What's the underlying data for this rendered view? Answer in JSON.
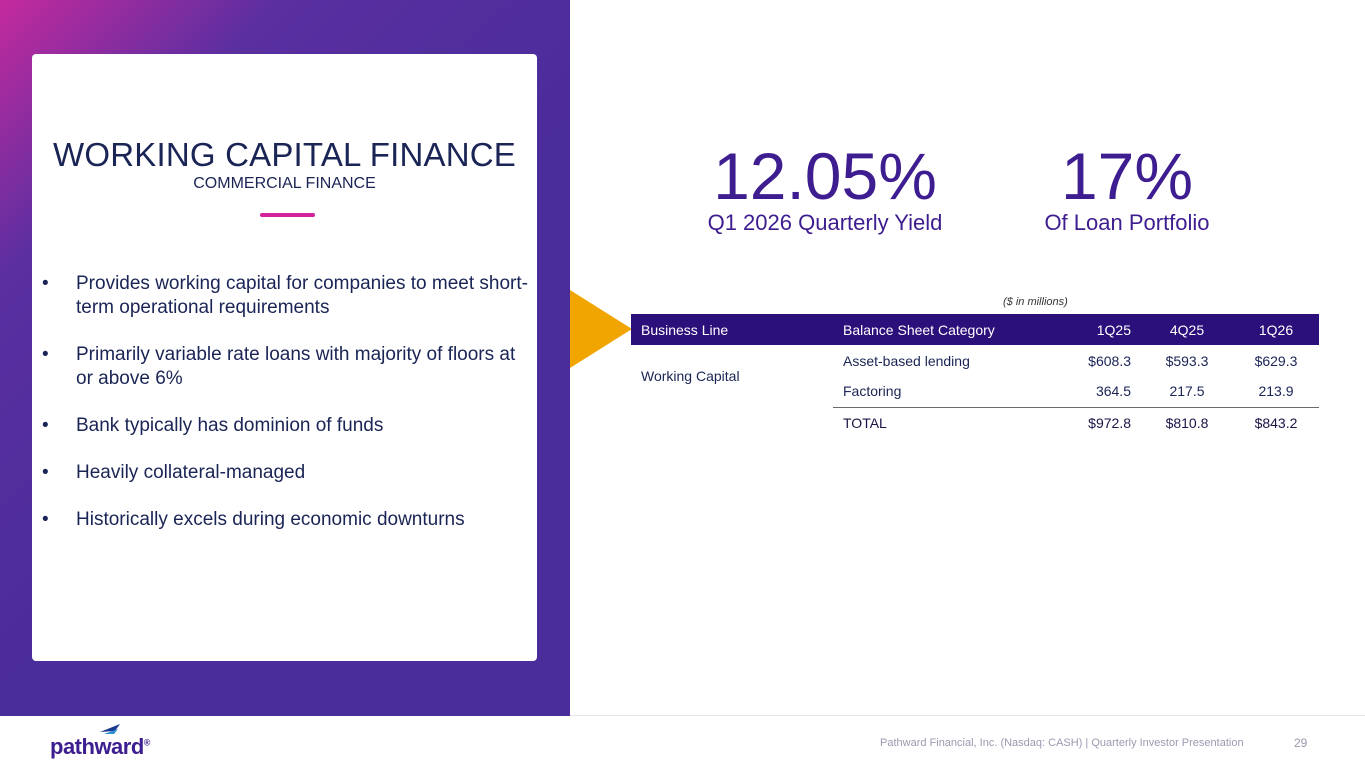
{
  "card": {
    "title": "WORKING CAPITAL FINANCE",
    "subtitle": "COMMERCIAL FINANCE",
    "bullet_glyph": "•",
    "bullets": [
      "Provides working capital for companies to meet short-term operational requirements",
      "Primarily variable rate loans with majority of floors at or above 6%",
      "Bank typically has dominion of funds",
      "Heavily collateral-managed",
      "Historically excels during economic downturns"
    ]
  },
  "metrics": [
    {
      "value": "12.05%",
      "label": "Q1 2026 Quarterly Yield"
    },
    {
      "value": "17%",
      "label": "Of Loan Portfolio"
    }
  ],
  "table": {
    "note": "($ in millions)",
    "headers": [
      "Business Line",
      "Balance Sheet Category",
      "1Q25",
      "4Q25",
      "1Q26"
    ],
    "business_line": "Working Capital",
    "rows": [
      {
        "category": "Asset-based lending",
        "q1_25": "$608.3",
        "q4_25": "$593.3",
        "q1_26": "$629.3"
      },
      {
        "category": "Factoring",
        "q1_25": "364.5",
        "q4_25": "217.5",
        "q1_26": "213.9"
      },
      {
        "category": "TOTAL",
        "q1_25": "$972.8",
        "q4_25": "$810.8",
        "q1_26": "$843.2"
      }
    ]
  },
  "footer": {
    "logo_text": "pathward",
    "logo_mark": "®",
    "text": "Pathward Financial, Inc. (Nasdaq: CASH) | Quarterly Investor Presentation",
    "page": "29"
  },
  "colors": {
    "accent_purple": "#3d1d8f",
    "header_purple": "#2b0f7a",
    "arrow_gold": "#f0a500",
    "accent_pink": "#d6219c"
  }
}
